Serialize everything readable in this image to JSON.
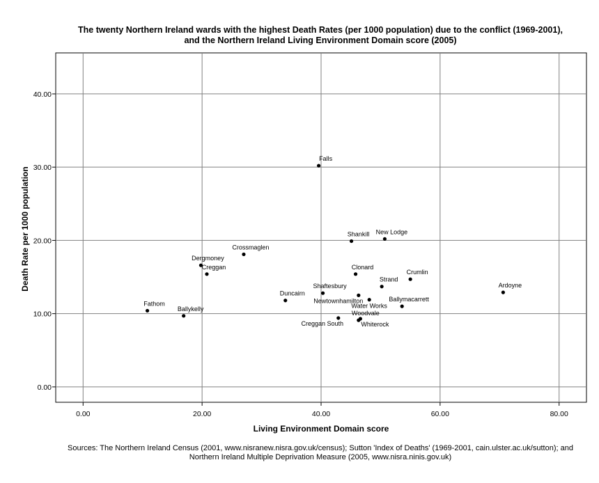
{
  "chart_data": {
    "type": "scatter",
    "title_lines": [
      "The twenty Northern Ireland wards with the highest Death Rates (per 1000 population) due to the conflict (1969-2001),",
      "and the Northern Ireland Living Environment Domain score (2005)"
    ],
    "xlabel": "Living Environment Domain score",
    "ylabel": "Death Rate per 1000 population",
    "xlim": [
      -4.6,
      84.6
    ],
    "ylim": [
      -2.1,
      45.6
    ],
    "x_ticks": [
      "0.00",
      "20.00",
      "40.00",
      "60.00",
      "80.00"
    ],
    "y_ticks": [
      "0.00",
      "10.00",
      "20.00",
      "30.00",
      "40.00"
    ],
    "grid": true,
    "points": [
      {
        "label": "Falls",
        "x": 39.6,
        "y": 30.2
      },
      {
        "label": "Shankill",
        "x": 45.1,
        "y": 19.9
      },
      {
        "label": "New Lodge",
        "x": 50.7,
        "y": 20.2
      },
      {
        "label": "Crossmaglen",
        "x": 27.0,
        "y": 18.1
      },
      {
        "label": "Dergmoney",
        "x": 19.8,
        "y": 16.6
      },
      {
        "label": "Creggan",
        "x": 20.8,
        "y": 15.4
      },
      {
        "label": "Clonard",
        "x": 45.8,
        "y": 15.4
      },
      {
        "label": "Crumlin",
        "x": 55.0,
        "y": 14.7
      },
      {
        "label": "Strand",
        "x": 50.2,
        "y": 13.7
      },
      {
        "label": "Ardoyne",
        "x": 70.6,
        "y": 12.9
      },
      {
        "label": "Shaftesbury",
        "x": 40.3,
        "y": 12.8
      },
      {
        "label": "Duncairn",
        "x": 34.0,
        "y": 11.8
      },
      {
        "label": "Newtownhamilton",
        "x": 46.3,
        "y": 12.5
      },
      {
        "label": "Water Works",
        "x": 48.1,
        "y": 11.9
      },
      {
        "label": "Ballymacarrett",
        "x": 53.6,
        "y": 11.0
      },
      {
        "label": "Fathom",
        "x": 10.8,
        "y": 10.4
      },
      {
        "label": "Ballykelly",
        "x": 16.9,
        "y": 9.7
      },
      {
        "label": "Creggan South",
        "x": 42.9,
        "y": 9.4
      },
      {
        "label": "Woodvale",
        "x": 46.3,
        "y": 9.1
      },
      {
        "label": "Whiterock",
        "x": 46.6,
        "y": 9.3
      }
    ]
  },
  "sources_lines": [
    "Sources: The Northern Ireland Census (2001, www.nisranew.nisra.gov.uk/census); Sutton 'Index of Deaths' (1969-2001, cain.ulster.ac.uk/sutton); and",
    "Northern Ireland Multiple Deprivation Measure (2005, www.nisra.ninis.gov.uk)"
  ]
}
